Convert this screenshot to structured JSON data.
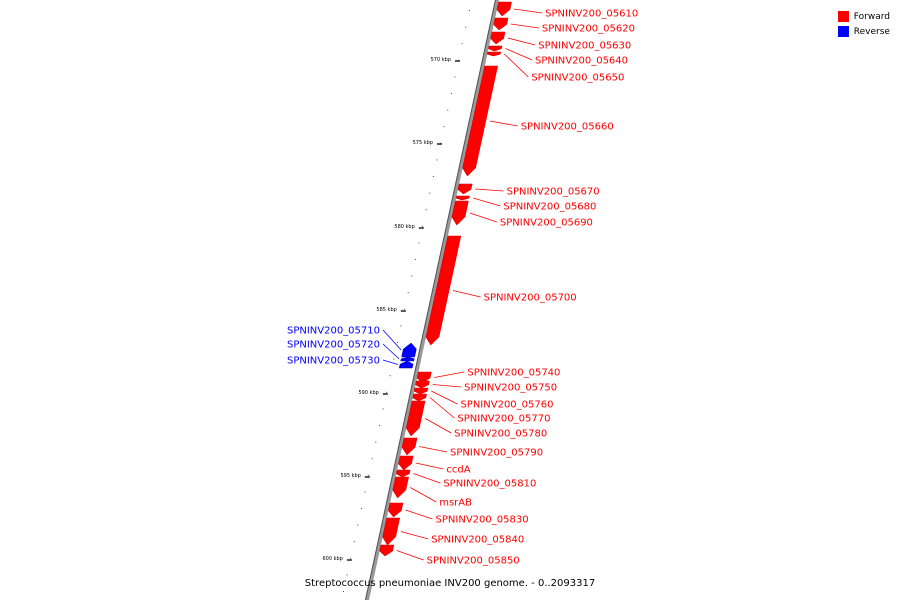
{
  "legend": {
    "forward_label": "Forward",
    "reverse_label": "Reverse",
    "forward_color": "#ff0000",
    "reverse_color": "#0000ff"
  },
  "caption": "Streptococcus pneumoniae INV200 genome. - 0..2093317",
  "axis_ticks": [
    "570 kbp",
    "575 kbp",
    "580 kbp",
    "585 kbp",
    "590 kbp",
    "595 kbp",
    "600 kbp"
  ],
  "genes": [
    {
      "name": "SPNINV200_05610",
      "strand": "forward"
    },
    {
      "name": "SPNINV200_05620",
      "strand": "forward"
    },
    {
      "name": "SPNINV200_05630",
      "strand": "forward"
    },
    {
      "name": "SPNINV200_05640",
      "strand": "forward"
    },
    {
      "name": "SPNINV200_05650",
      "strand": "forward"
    },
    {
      "name": "SPNINV200_05660",
      "strand": "forward"
    },
    {
      "name": "SPNINV200_05670",
      "strand": "forward"
    },
    {
      "name": "SPNINV200_05680",
      "strand": "forward"
    },
    {
      "name": "SPNINV200_05690",
      "strand": "forward"
    },
    {
      "name": "SPNINV200_05700",
      "strand": "forward"
    },
    {
      "name": "SPNINV200_05710",
      "strand": "reverse"
    },
    {
      "name": "SPNINV200_05720",
      "strand": "reverse"
    },
    {
      "name": "SPNINV200_05730",
      "strand": "reverse"
    },
    {
      "name": "SPNINV200_05740",
      "strand": "forward"
    },
    {
      "name": "SPNINV200_05750",
      "strand": "forward"
    },
    {
      "name": "SPNINV200_05760",
      "strand": "forward"
    },
    {
      "name": "SPNINV200_05770",
      "strand": "forward"
    },
    {
      "name": "SPNINV200_05780",
      "strand": "forward"
    },
    {
      "name": "SPNINV200_05790",
      "strand": "forward"
    },
    {
      "name": "ccdA",
      "strand": "forward"
    },
    {
      "name": "SPNINV200_05810",
      "strand": "forward"
    },
    {
      "name": "msrAB",
      "strand": "forward"
    },
    {
      "name": "SPNINV200_05830",
      "strand": "forward"
    },
    {
      "name": "SPNINV200_05840",
      "strand": "forward"
    },
    {
      "name": "SPNINV200_05850",
      "strand": "forward"
    }
  ]
}
